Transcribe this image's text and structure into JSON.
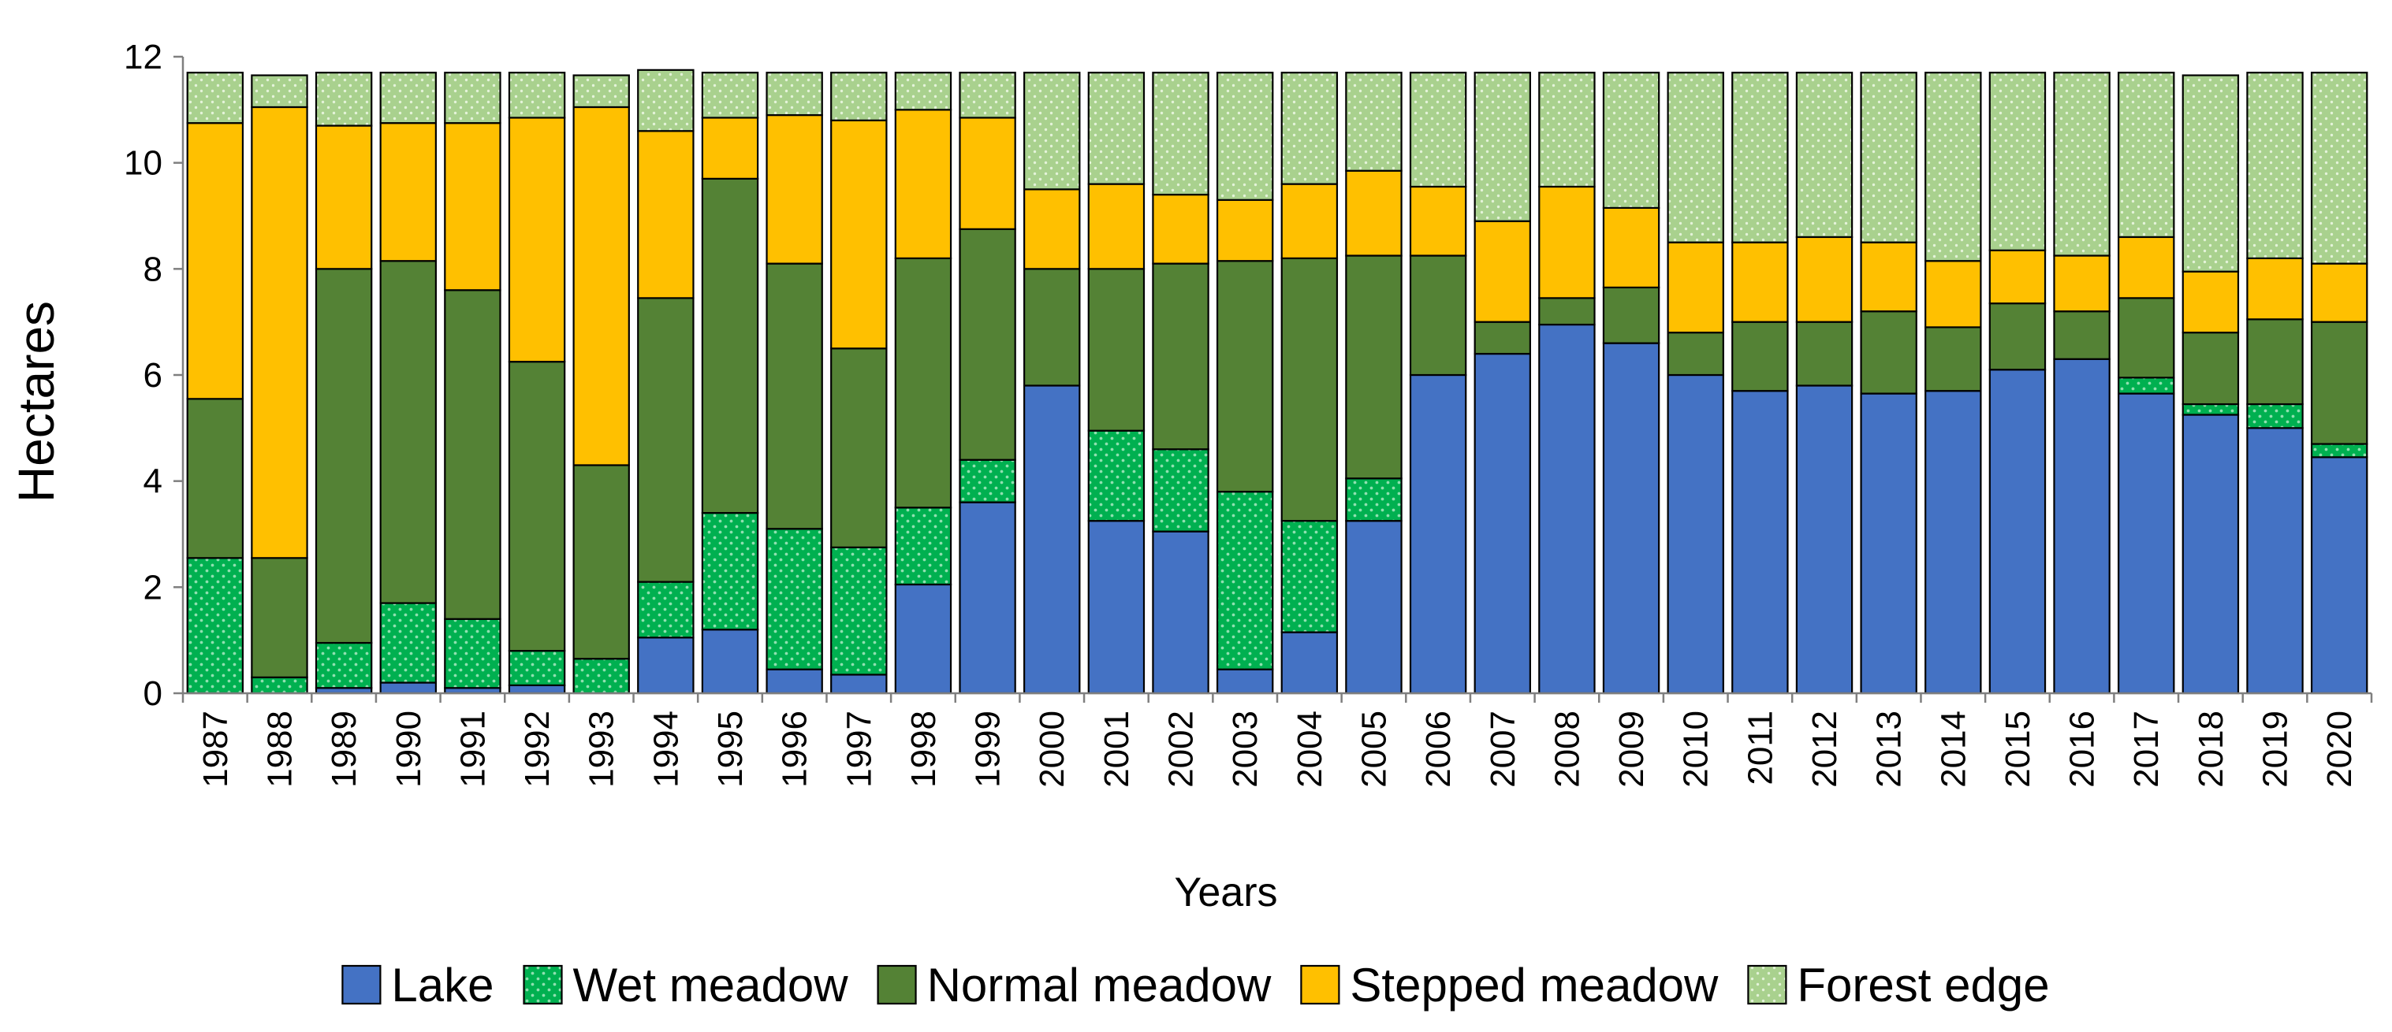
{
  "chart_data": {
    "type": "bar",
    "stacked": true,
    "title": "",
    "xlabel": "Years",
    "ylabel": "Hectares",
    "ylim": [
      0,
      12
    ],
    "yticks": [
      0,
      2,
      4,
      6,
      8,
      10,
      12
    ],
    "grid": false,
    "legend_position": "bottom",
    "categories": [
      "1987",
      "1988",
      "1989",
      "1990",
      "1991",
      "1992",
      "1993",
      "1994",
      "1995",
      "1996",
      "1997",
      "1998",
      "1999",
      "2000",
      "2001",
      "2002",
      "2003",
      "2004",
      "2005",
      "2006",
      "2007",
      "2008",
      "2009",
      "2010",
      "2011",
      "2012",
      "2013",
      "2014",
      "2015",
      "2016",
      "2017",
      "2018",
      "2019",
      "2020"
    ],
    "series": [
      {
        "name": "Lake",
        "color": "#4472C4",
        "pattern": "none",
        "values": [
          0,
          0,
          0.1,
          0.2,
          0.1,
          0.15,
          0,
          1.05,
          1.2,
          0.45,
          0.35,
          2.05,
          3.6,
          5.8,
          3.25,
          3.05,
          0.45,
          1.15,
          3.25,
          6.0,
          6.4,
          6.95,
          6.6,
          6.0,
          5.7,
          5.8,
          5.65,
          5.7,
          6.1,
          6.3,
          5.65,
          5.25,
          5.0,
          4.45
        ]
      },
      {
        "name": "Wet meadow",
        "color": "#00B050",
        "pattern": "dots",
        "values": [
          2.55,
          0.3,
          0.85,
          1.5,
          1.3,
          0.65,
          0.65,
          1.05,
          2.2,
          2.65,
          2.4,
          1.45,
          0.8,
          0,
          1.7,
          1.55,
          3.35,
          2.1,
          0.8,
          0,
          0,
          0,
          0,
          0,
          0,
          0,
          0,
          0,
          0,
          0,
          0.3,
          0.2,
          0.45,
          0.25
        ]
      },
      {
        "name": "Normal meadow",
        "color": "#548235",
        "pattern": "none",
        "values": [
          3.0,
          2.25,
          7.05,
          6.45,
          6.2,
          5.45,
          3.65,
          5.35,
          6.3,
          5.0,
          3.75,
          4.7,
          4.35,
          2.2,
          3.05,
          3.5,
          4.35,
          4.95,
          4.2,
          2.25,
          0.6,
          0.5,
          1.05,
          0.8,
          1.3,
          1.2,
          1.55,
          1.2,
          1.25,
          0.9,
          1.5,
          1.35,
          1.6,
          2.3
        ]
      },
      {
        "name": "Stepped meadow",
        "color": "#FFC000",
        "pattern": "none",
        "values": [
          5.2,
          8.5,
          2.7,
          2.6,
          3.15,
          4.6,
          6.75,
          3.15,
          1.15,
          2.8,
          4.3,
          2.8,
          2.1,
          1.5,
          1.6,
          1.3,
          1.15,
          1.4,
          1.6,
          1.3,
          1.9,
          2.1,
          1.5,
          1.7,
          1.5,
          1.6,
          1.3,
          1.25,
          1.0,
          1.05,
          1.15,
          1.15,
          1.15,
          1.1
        ]
      },
      {
        "name": "Forest edge",
        "color": "#A9D18E",
        "pattern": "dots-light",
        "values": [
          0.95,
          0.6,
          1.0,
          0.95,
          0.95,
          0.85,
          0.6,
          1.15,
          0.85,
          0.8,
          0.9,
          0.7,
          0.85,
          2.2,
          2.1,
          2.3,
          2.4,
          2.1,
          1.85,
          2.15,
          2.8,
          2.15,
          2.55,
          3.2,
          3.2,
          3.1,
          3.2,
          3.55,
          3.35,
          3.45,
          3.1,
          3.7,
          3.5,
          3.6
        ]
      }
    ]
  }
}
